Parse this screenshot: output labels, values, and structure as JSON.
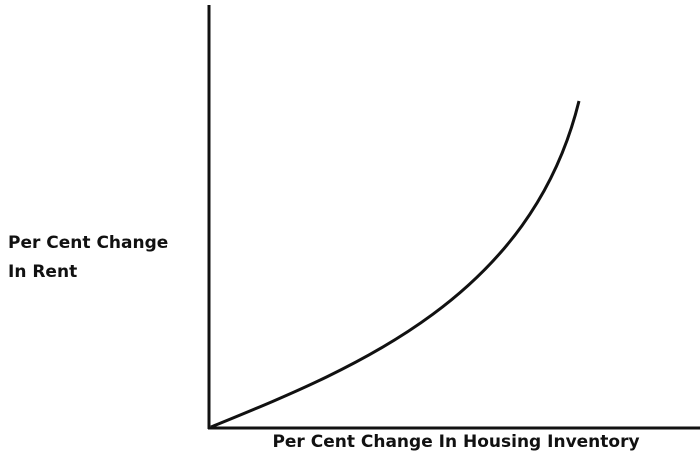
{
  "y_axis_label": [
    "Per Cent Change",
    "In Rent"
  ],
  "x_axis_label": "Per Cent Change In Housing Inventory"
}
